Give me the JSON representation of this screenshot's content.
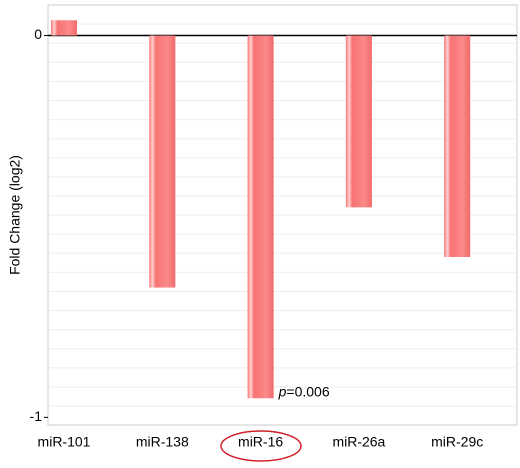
{
  "chart_data": {
    "type": "bar",
    "y_label": "Fold Change (log2)",
    "categories": [
      "miR-101",
      "miR-138",
      "miR-16",
      "miR-26a",
      "miR-29c"
    ],
    "values": [
      0.04,
      -0.66,
      -0.95,
      -0.45,
      -0.58
    ],
    "color": "#f77272",
    "ylim": [
      -1.02,
      0.08
    ],
    "yticks": [
      -1,
      0
    ],
    "annotation": {
      "italic": "p",
      "text": "=0.006"
    }
  }
}
